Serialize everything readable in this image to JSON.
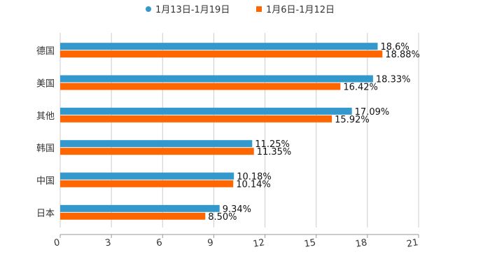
{
  "chart_data": {
    "type": "bar",
    "orientation": "horizontal",
    "title": "",
    "xlabel": "",
    "ylabel": "",
    "categories": [
      "德国",
      "美国",
      "其他",
      "韩国",
      "中国",
      "日本"
    ],
    "series": [
      {
        "name": "1月13日-1月19日",
        "color": "#3399cc",
        "values": [
          18.6,
          18.33,
          17.09,
          11.25,
          10.18,
          9.34
        ],
        "labels": [
          "18.6%",
          "18.33%",
          "17.09%",
          "11.25%",
          "10.18%",
          "9.34%"
        ]
      },
      {
        "name": "1月6日-1月12日",
        "color": "#ff6600",
        "values": [
          18.88,
          16.42,
          15.92,
          11.35,
          10.14,
          8.5
        ],
        "labels": [
          "18.88%",
          "16.42%",
          "15.92%",
          "11.35%",
          "10.14%",
          "8.50%"
        ]
      }
    ],
    "xlim": [
      0,
      21
    ],
    "xticks": [
      "0",
      "3",
      "6",
      "9",
      "12",
      "15",
      "18",
      "21"
    ],
    "grid": true,
    "legend_position": "top-center"
  }
}
